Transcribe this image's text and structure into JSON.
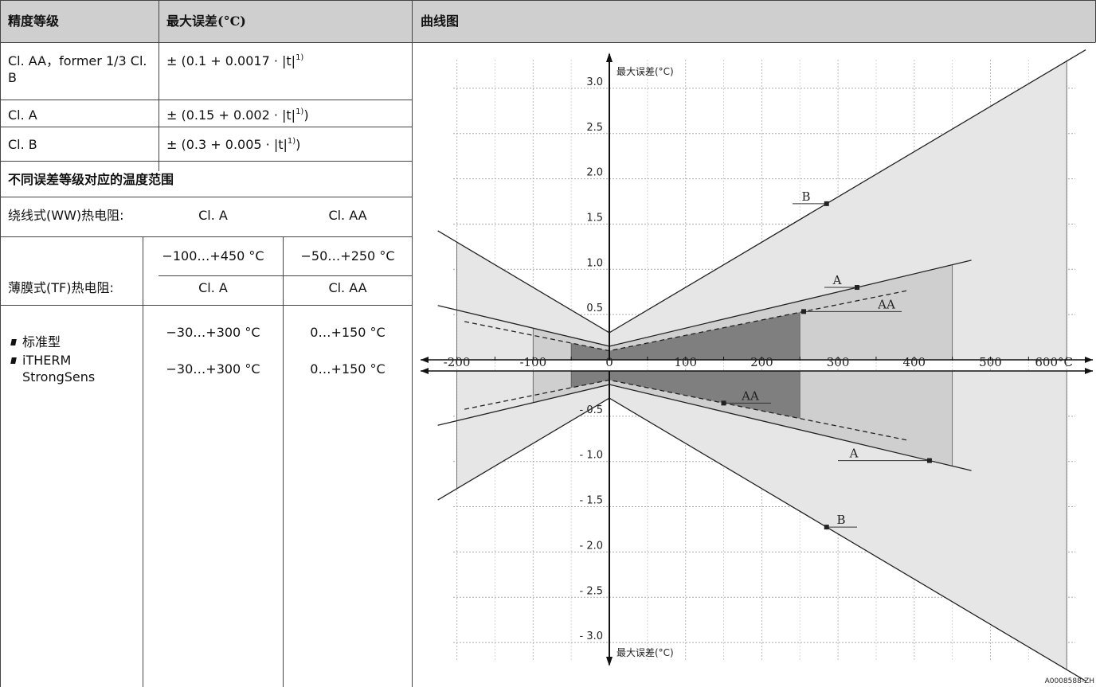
{
  "table": {
    "headers": {
      "accuracy_class": "精度等级",
      "max_error": "最大误差(°C)",
      "curve": "曲线图"
    },
    "rows": [
      {
        "class": "Cl. AA，former 1/3 Cl. B",
        "formula": "± (0.1 + 0.0017 · |t|",
        "footnote": "1)",
        "suffix": ""
      },
      {
        "class": "Cl. A",
        "formula": "± (0.15 + 0.002 · |t|",
        "footnote": "1)",
        "suffix": ")"
      },
      {
        "class": "Cl. B",
        "formula": "± (0.3 + 0.005 · |t|",
        "footnote": "1)",
        "suffix": ")"
      }
    ],
    "range_heading": "不同误差等级对应的温度范围",
    "ww": {
      "label": "绕线式(WW)热电阻:",
      "col_a": "Cl. A",
      "col_aa": "Cl. AA",
      "range_a": "−100…+450 °C",
      "range_aa": "−50…+250 °C"
    },
    "tf": {
      "label": "薄膜式(TF)热电阻:",
      "col_a": "Cl. A",
      "col_aa": "Cl. AA",
      "items": [
        {
          "name": "标准型",
          "range_a": "−30…+300 °C",
          "range_aa": "0…+150 °C"
        },
        {
          "name": "iTHERM StrongSens",
          "range_a": "−30…+300 °C",
          "range_aa": "0…+150 °C"
        }
      ]
    }
  },
  "chart_data": {
    "type": "line",
    "xlabel": "°C",
    "ylabel_top": "最大误差(°C)",
    "ylabel_bottom": "最大误差(°C)",
    "x_ticks": [
      "-200",
      "-100",
      "0",
      "100",
      "200",
      "300",
      "400",
      "500",
      "600"
    ],
    "y_ticks_pos": [
      "0.5",
      "1.0",
      "1.5",
      "2.0",
      "2.5",
      "3.0"
    ],
    "y_ticks_neg": [
      "- 0.5",
      "- 1.0",
      "- 1.5",
      "- 2.0",
      "- 2.5",
      "- 3.0"
    ],
    "xlim": [
      -200,
      600
    ],
    "ylim": [
      -3.0,
      3.0
    ],
    "series": [
      {
        "name": "B",
        "formula": "0.3 + 0.005·|t|",
        "x": [
          -200,
          0,
          600
        ],
        "y": [
          1.3,
          0.3,
          3.3
        ]
      },
      {
        "name": "A",
        "formula": "0.15 + 0.002·|t|",
        "x": [
          -200,
          0,
          450
        ],
        "y": [
          0.55,
          0.15,
          1.05
        ]
      },
      {
        "name": "AA",
        "formula": "0.1 + 0.0017·|t|",
        "x": [
          -200,
          0,
          400
        ],
        "y": [
          0.44,
          0.1,
          0.78
        ]
      }
    ],
    "labels": [
      "B",
      "A",
      "AA",
      "AA",
      "A",
      "B"
    ],
    "footer_code": "A0008588-ZH"
  }
}
